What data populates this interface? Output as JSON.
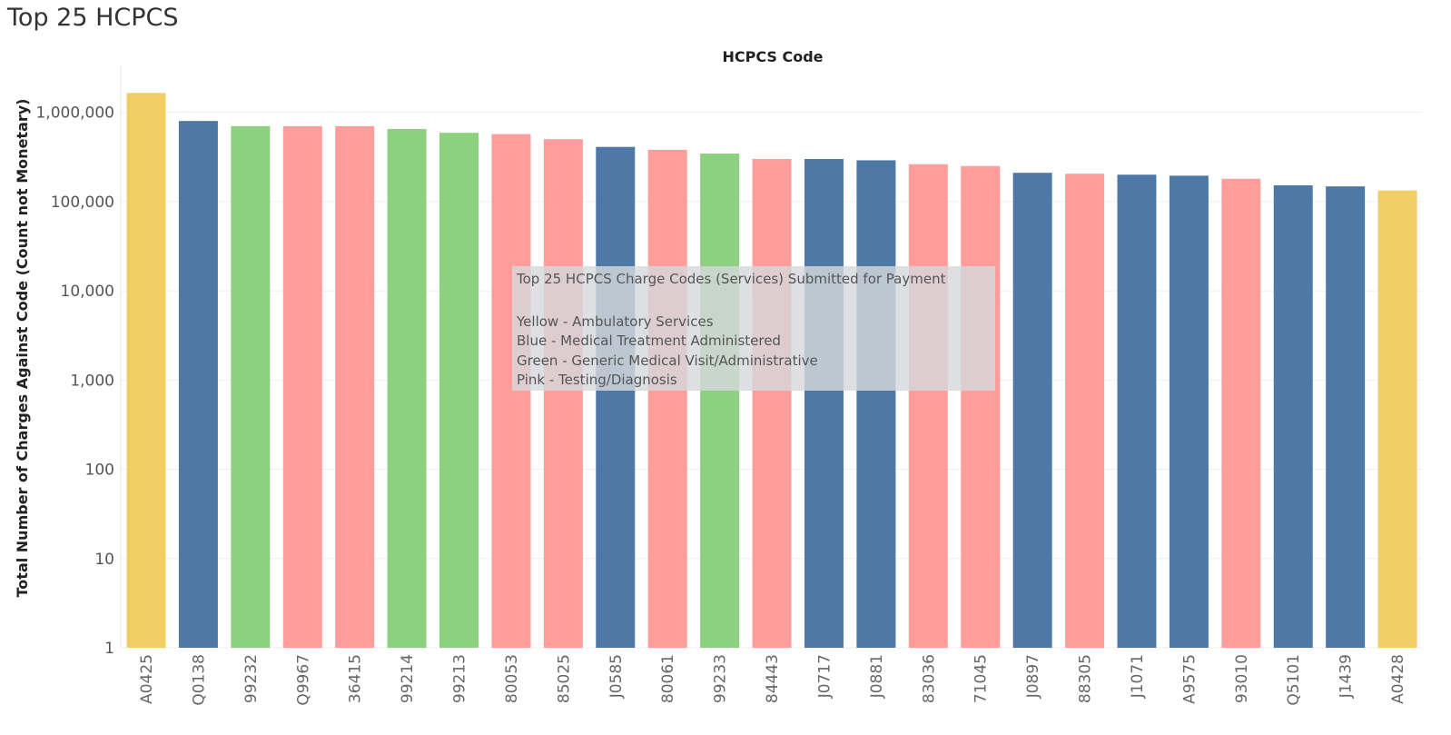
{
  "page": {
    "title": "Top 25 HCPCS"
  },
  "legend": {
    "title": "Top 25 HCPCS Charge Codes (Services) Submitted for Payment",
    "lines": [
      "Yellow - Ambulatory Services",
      "Blue - Medical Treatment Administered",
      "Green - Generic Medical Visit/Administrative",
      "Pink - Testing/Diagnosis"
    ]
  },
  "colors": {
    "yellow": "#F1CE63",
    "blue": "#4E79A7",
    "green": "#8CD17D",
    "pink": "#FF9D9A"
  },
  "chart_data": {
    "type": "bar",
    "title": "",
    "xlabel": "HCPCS Code",
    "ylabel": "Total Number of Charges Against Code (Count not Monetary)",
    "yscale": "log",
    "ylim": [
      1,
      1700000
    ],
    "grid": true,
    "yticks": [
      1,
      10,
      100,
      1000,
      10000,
      100000,
      1000000
    ],
    "ytick_labels": [
      "1",
      "10",
      "100",
      "1,000",
      "10,000",
      "100,000",
      "1,000,000"
    ],
    "categories": [
      "A0425",
      "Q0138",
      "99232",
      "Q9967",
      "36415",
      "99214",
      "99213",
      "80053",
      "85025",
      "J0585",
      "80061",
      "99233",
      "84443",
      "J0717",
      "J0881",
      "83036",
      "71045",
      "J0897",
      "88305",
      "J1071",
      "A9575",
      "93010",
      "Q5101",
      "J1439",
      "A0428"
    ],
    "values": [
      1650000,
      800000,
      700000,
      700000,
      700000,
      650000,
      590000,
      570000,
      500000,
      410000,
      380000,
      345000,
      300000,
      300000,
      290000,
      262000,
      250000,
      210000,
      205000,
      200000,
      195000,
      180000,
      152000,
      148000,
      133000
    ],
    "groups": [
      "yellow",
      "blue",
      "green",
      "pink",
      "pink",
      "green",
      "green",
      "pink",
      "pink",
      "blue",
      "pink",
      "green",
      "pink",
      "blue",
      "blue",
      "pink",
      "pink",
      "blue",
      "pink",
      "blue",
      "blue",
      "pink",
      "blue",
      "blue",
      "yellow"
    ]
  }
}
